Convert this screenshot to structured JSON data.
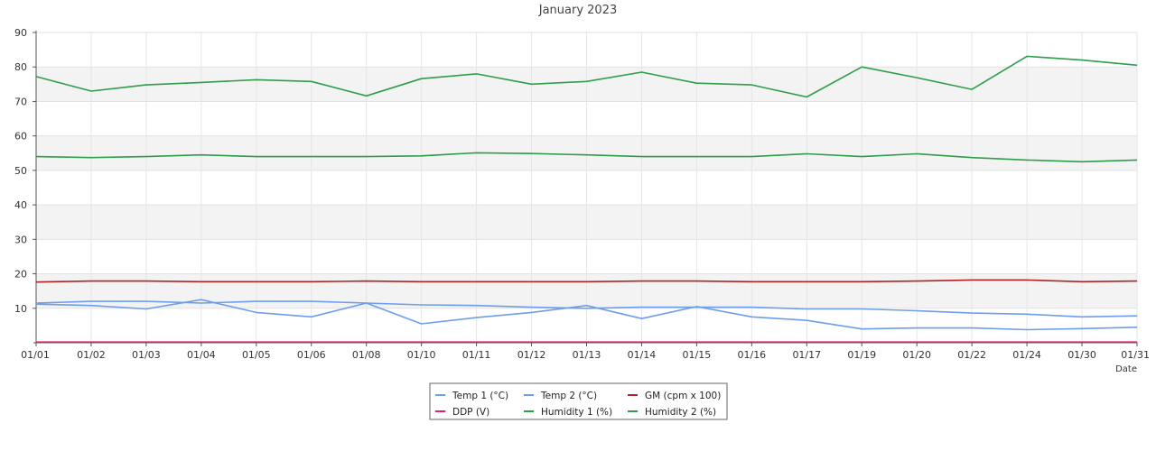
{
  "chart_data": {
    "type": "line",
    "title": "January 2023",
    "xlabel": "Date",
    "ylabel": "",
    "ylim": [
      0,
      90
    ],
    "yticks": [
      10,
      20,
      30,
      40,
      50,
      60,
      70,
      80,
      90
    ],
    "grid": true,
    "legend_position": "bottom-center",
    "categories": [
      "01/01",
      "01/02",
      "01/03",
      "01/04",
      "01/05",
      "01/06",
      "01/08",
      "01/10",
      "01/11",
      "01/12",
      "01/13",
      "01/14",
      "01/15",
      "01/16",
      "01/17",
      "01/19",
      "01/20",
      "01/22",
      "01/24",
      "01/30",
      "01/31"
    ],
    "series": [
      {
        "name": "Temp 1 (°C)",
        "color": "#6d9eeb",
        "values": [
          11.5,
          12,
          12,
          11.5,
          12,
          12,
          11.5,
          11,
          10.8,
          10.3,
          10,
          10.3,
          10.3,
          10.3,
          9.8,
          9.8,
          9.3,
          8.6,
          8.3,
          7.5,
          7.8
        ]
      },
      {
        "name": "Temp 2 (°C)",
        "color": "#6d9eeb",
        "values": [
          11.2,
          10.8,
          9.8,
          12.5,
          8.8,
          7.5,
          11.5,
          5.5,
          7.3,
          8.8,
          10.8,
          7,
          10.5,
          7.5,
          6.5,
          4,
          4.3,
          4.3,
          3.8,
          4.1,
          4.5
        ]
      },
      {
        "name": "GM (cpm x 100)",
        "color": "#b22222",
        "values": [
          17.6,
          17.9,
          17.9,
          17.7,
          17.7,
          17.7,
          17.9,
          17.7,
          17.7,
          17.7,
          17.7,
          17.9,
          17.9,
          17.7,
          17.7,
          17.7,
          17.9,
          18.2,
          18.2,
          17.7,
          17.9
        ]
      },
      {
        "name": "DDP (V)",
        "color": "#e91e63",
        "values": [
          0.2,
          0.2,
          0.2,
          0.2,
          0.2,
          0.2,
          0.2,
          0.2,
          0.2,
          0.2,
          0.2,
          0.2,
          0.2,
          0.2,
          0.2,
          0.2,
          0.2,
          0.2,
          0.2,
          0.2,
          0.2
        ]
      },
      {
        "name": "Humidity 1 (%)",
        "color": "#2e9e49",
        "values": [
          77.2,
          73,
          74.8,
          75.5,
          76.3,
          75.8,
          71.6,
          76.6,
          78,
          75,
          75.8,
          78.5,
          75.3,
          74.8,
          71.3,
          80,
          76.9,
          73.5,
          83.1,
          82,
          80.5
        ]
      },
      {
        "name": "Humidity 2 (%)",
        "color": "#2e9e49",
        "values": [
          54,
          53.7,
          54,
          54.5,
          54,
          54,
          54,
          54.2,
          55.1,
          54.9,
          54.5,
          54,
          54,
          54,
          54.8,
          54,
          54.8,
          53.7,
          53,
          52.5,
          53
        ]
      }
    ]
  }
}
